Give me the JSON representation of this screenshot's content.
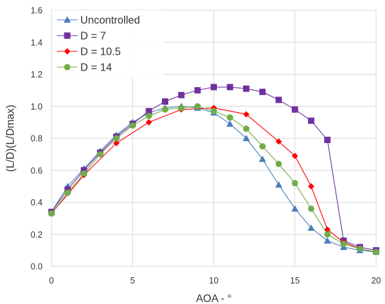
{
  "chart_data": {
    "type": "line",
    "xlabel": "AOA - °",
    "ylabel": "(L/D)(L/Dmax)",
    "xlim": [
      0,
      20
    ],
    "ylim": [
      0,
      1.6
    ],
    "xticks": [
      0,
      5,
      10,
      15,
      20
    ],
    "yticks": [
      0.0,
      0.2,
      0.4,
      0.6,
      0.8,
      1.0,
      1.2,
      1.4,
      1.6
    ],
    "ytick_labels": [
      "0.0",
      "0.2",
      "0.4",
      "0.6",
      "0.8",
      "1.0",
      "1.2",
      "1.4",
      "1.6"
    ],
    "grid": "major gridlines",
    "legend_position": "top-left",
    "series": [
      {
        "name": "Uncontrolled",
        "color": "#4a7ebb",
        "marker": "triangle",
        "x": [
          0,
          1,
          2,
          3,
          4,
          5,
          6,
          7,
          8,
          9,
          10,
          11,
          12,
          13,
          14,
          15,
          16,
          17,
          18,
          19,
          20
        ],
        "y": [
          0.34,
          0.5,
          0.61,
          0.72,
          0.82,
          0.9,
          0.96,
          0.99,
          1.0,
          0.99,
          0.96,
          0.89,
          0.8,
          0.67,
          0.51,
          0.36,
          0.24,
          0.16,
          0.12,
          0.1,
          0.09
        ]
      },
      {
        "name": "D = 7",
        "color": "#7030a0",
        "marker": "square",
        "x": [
          0,
          1,
          2,
          3,
          4,
          5,
          6,
          7,
          8,
          9,
          10,
          11,
          12,
          13,
          14,
          15,
          16,
          17,
          18,
          19,
          20
        ],
        "y": [
          0.34,
          0.48,
          0.6,
          0.71,
          0.81,
          0.89,
          0.97,
          1.03,
          1.07,
          1.1,
          1.12,
          1.12,
          1.11,
          1.09,
          1.04,
          0.98,
          0.91,
          0.79,
          0.16,
          0.12,
          0.1
        ]
      },
      {
        "name": "D = 10.5",
        "color": "#ff0000",
        "marker": "diamond",
        "x": [
          0,
          2,
          4,
          6,
          8,
          10,
          12,
          14,
          15,
          16,
          17,
          18,
          19,
          20
        ],
        "y": [
          0.33,
          0.57,
          0.77,
          0.9,
          0.98,
          0.99,
          0.95,
          0.78,
          0.69,
          0.5,
          0.23,
          0.15,
          0.11,
          0.09
        ]
      },
      {
        "name": "D = 14",
        "color": "#70ad47",
        "marker": "circle",
        "x": [
          0,
          1,
          2,
          3,
          4,
          5,
          6,
          7,
          8,
          9,
          10,
          11,
          12,
          13,
          14,
          15,
          16,
          17,
          18,
          19,
          20
        ],
        "y": [
          0.33,
          0.46,
          0.58,
          0.7,
          0.8,
          0.88,
          0.94,
          0.98,
          0.99,
          1.0,
          0.97,
          0.93,
          0.86,
          0.75,
          0.64,
          0.52,
          0.36,
          0.2,
          0.14,
          0.11,
          0.09
        ]
      }
    ]
  }
}
